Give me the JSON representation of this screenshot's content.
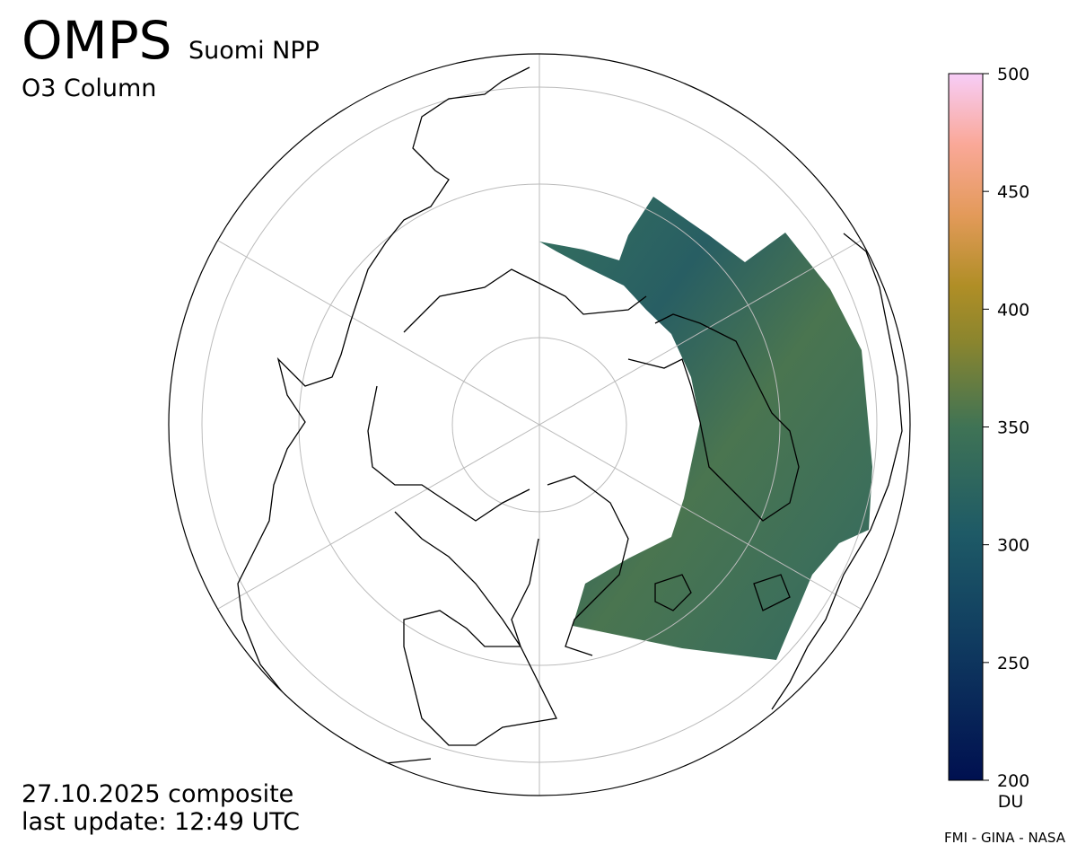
{
  "title": "OMPS",
  "subtitle": "Suomi NPP",
  "product": "O3 Column",
  "date": "27.10.2025 composite",
  "update": "last update: 12:49 UTC",
  "colorbar": {
    "lim": [
      200,
      500
    ],
    "ticks": [
      200,
      250,
      300,
      350,
      400,
      450,
      500
    ],
    "unit": "DU"
  },
  "credit": "FMI - GINA - NASA"
}
